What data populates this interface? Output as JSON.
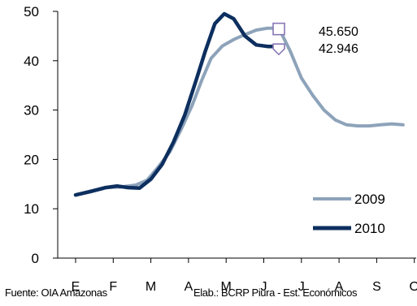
{
  "chart_data": {
    "type": "line",
    "x_ticks": [
      "E",
      "F",
      "M",
      "A",
      "M",
      "J",
      "J",
      "A",
      "S",
      "O"
    ],
    "ylim": [
      0,
      50
    ],
    "y_ticks": [
      0,
      10,
      20,
      30,
      40,
      50
    ],
    "grid": false,
    "legend_position": "bottom-right",
    "series": [
      {
        "name": "2009",
        "color": "#8DA3BA",
        "points": [
          [
            0,
            12.8
          ],
          [
            0.4,
            13.6
          ],
          [
            0.8,
            14.3
          ],
          [
            1.2,
            14.4
          ],
          [
            1.6,
            14.8
          ],
          [
            1.9,
            15.8
          ],
          [
            2.2,
            18.5
          ],
          [
            2.5,
            21.5
          ],
          [
            2.8,
            26.0
          ],
          [
            3.1,
            31.0
          ],
          [
            3.35,
            36.0
          ],
          [
            3.6,
            40.5
          ],
          [
            3.9,
            43.0
          ],
          [
            4.2,
            44.3
          ],
          [
            4.5,
            45.3
          ],
          [
            4.8,
            46.2
          ],
          [
            5.1,
            46.6
          ],
          [
            5.4,
            46.6
          ],
          [
            5.7,
            42.0
          ],
          [
            6.0,
            36.5
          ],
          [
            6.3,
            33.0
          ],
          [
            6.6,
            30.0
          ],
          [
            6.9,
            28.0
          ],
          [
            7.2,
            27.0
          ],
          [
            7.5,
            26.8
          ],
          [
            7.8,
            26.8
          ],
          [
            8.1,
            27.0
          ],
          [
            8.4,
            27.2
          ],
          [
            8.7,
            27.0
          ]
        ]
      },
      {
        "name": "2010",
        "color": "#0D2F5F",
        "points": [
          [
            0,
            12.8
          ],
          [
            0.4,
            13.5
          ],
          [
            0.8,
            14.3
          ],
          [
            1.1,
            14.6
          ],
          [
            1.4,
            14.3
          ],
          [
            1.7,
            14.2
          ],
          [
            2.0,
            16.0
          ],
          [
            2.3,
            19.0
          ],
          [
            2.6,
            23.5
          ],
          [
            2.9,
            29.0
          ],
          [
            3.2,
            36.0
          ],
          [
            3.45,
            42.0
          ],
          [
            3.7,
            47.5
          ],
          [
            3.95,
            49.5
          ],
          [
            4.2,
            48.5
          ],
          [
            4.5,
            45.0
          ],
          [
            4.8,
            43.2
          ],
          [
            5.1,
            42.9
          ],
          [
            5.4,
            42.9
          ]
        ]
      }
    ],
    "annotations": [
      {
        "label": "45.650",
        "series": "2009"
      },
      {
        "label": "42.946",
        "series": "2010"
      }
    ]
  },
  "footer": {
    "source": "Fuente: OIA Amazonas",
    "elab": "Elab.: BCRP Piura - Est. Económicos"
  }
}
